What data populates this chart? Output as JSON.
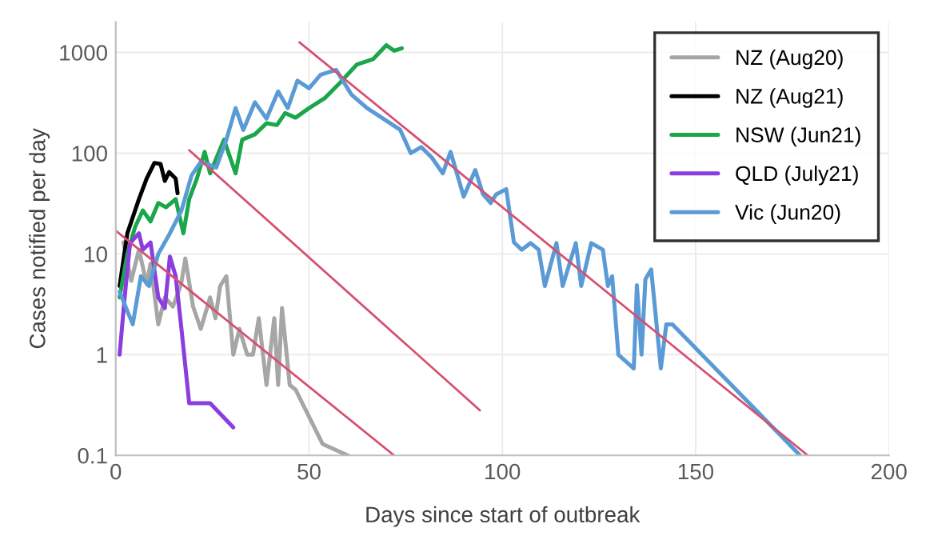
{
  "chart_data": {
    "type": "line",
    "xlabel": "Days since start of outbreak",
    "ylabel": "Cases notified per day",
    "log": "y",
    "xlim": [
      0,
      200
    ],
    "ylim": [
      0.1,
      2000
    ],
    "xticks": [
      0,
      50,
      100,
      150,
      200
    ],
    "yticks": [
      {
        "value": 0.1,
        "label": "0.1"
      },
      1,
      10,
      100,
      1000
    ],
    "grid": true,
    "legend": "top right",
    "marker": "none",
    "line_style": "solid",
    "series": [
      {
        "name": "NZ (Aug20)",
        "color": "#a6a6a6",
        "x": [
          2,
          4,
          6,
          8,
          9,
          11,
          12.7,
          14.8,
          16.9,
          18,
          20,
          22,
          24.4,
          25.8,
          27,
          28.6,
          30.4,
          32,
          34,
          35.5,
          37,
          39,
          41,
          42,
          43,
          45,
          46.5,
          53.5,
          60
        ],
        "values": [
          13,
          5.4,
          11,
          5,
          8,
          2,
          3.7,
          3,
          5,
          9,
          3,
          1.8,
          3.7,
          2.3,
          4.8,
          6,
          1,
          1.8,
          1,
          1,
          2.3,
          0.5,
          2.3,
          0.5,
          2.9,
          0.5,
          0.45,
          0.13,
          0.1
        ]
      },
      {
        "name": "NZ (Aug21)",
        "color": "#000000",
        "x": [
          1,
          3,
          6,
          8,
          10,
          11.6,
          12.7,
          13.8,
          15.5,
          16
        ],
        "values": [
          4.8,
          16,
          35,
          56,
          80,
          78,
          53,
          65,
          56,
          40
        ]
      },
      {
        "name": "NSW (Jun21)",
        "color": "#1aa64a",
        "x": [
          1,
          3,
          5,
          7,
          9,
          11,
          13,
          15.5,
          17.5,
          19,
          21,
          23,
          24.4,
          28,
          31,
          32.7,
          36,
          39,
          41.7,
          43.8,
          46.5,
          50,
          54,
          58,
          62.4,
          66.6,
          70,
          72,
          74
        ],
        "values": [
          3.7,
          10,
          18.5,
          27,
          21,
          32,
          29,
          35,
          16,
          35,
          56,
          103,
          63,
          136,
          63,
          136,
          154,
          198,
          190,
          250,
          225,
          280,
          350,
          500,
          760,
          860,
          1180,
          1040,
          1100
        ]
      },
      {
        "name": "QLD (July21)",
        "color": "#8a3ee0",
        "x": [
          1,
          2.3,
          3.7,
          6,
          7,
          9,
          11,
          12.7,
          14,
          15.5,
          17,
          19,
          24.4,
          30.4
        ],
        "values": [
          1,
          3.7,
          12.8,
          16,
          11,
          13,
          3.7,
          2.9,
          9.4,
          6,
          1.8,
          0.33,
          0.33,
          0.19
        ]
      },
      {
        "name": "Vic (Jun20)",
        "color": "#5b9bd5",
        "x": [
          1,
          4.4,
          6.5,
          8.6,
          11,
          14,
          17,
          19.6,
          22,
          26,
          28.6,
          31,
          33,
          36,
          39,
          42,
          44.5,
          47,
          50,
          53,
          57,
          61,
          65,
          70,
          73.6,
          76.3,
          79,
          81.8,
          84.6,
          86.6,
          90,
          93,
          95,
          97,
          98.4,
          101,
          103,
          105,
          107.3,
          109.4,
          111,
          114,
          115.6,
          119,
          120.4,
          123,
          126,
          127.3,
          128.4,
          130,
          134,
          134.8,
          136,
          137,
          138.5,
          141,
          142.4,
          144,
          177
        ],
        "values": [
          4.2,
          2,
          6,
          4.8,
          10,
          16,
          27,
          60,
          82,
          72,
          136,
          280,
          170,
          320,
          220,
          410,
          280,
          525,
          440,
          600,
          670,
          380,
          280,
          210,
          170,
          100,
          115,
          90,
          63,
          103,
          37,
          68,
          39,
          32,
          39,
          44,
          13,
          11,
          12.8,
          11,
          4.8,
          12.8,
          4.8,
          12.8,
          4.8,
          12.8,
          11,
          4.8,
          6,
          1.0,
          0.73,
          4.9,
          1,
          5.6,
          7,
          0.73,
          2,
          2,
          0.1
        ]
      },
      {
        "color": "#d6516e",
        "x": [
          0,
          72
        ],
        "values": [
          17,
          0.1
        ]
      },
      {
        "color": "#d6516e",
        "x": [
          19,
          94.2
        ],
        "values": [
          107,
          0.28
        ]
      },
      {
        "color": "#d6516e",
        "x": [
          47.5,
          179
        ],
        "values": [
          1260,
          0.1
        ]
      }
    ]
  }
}
